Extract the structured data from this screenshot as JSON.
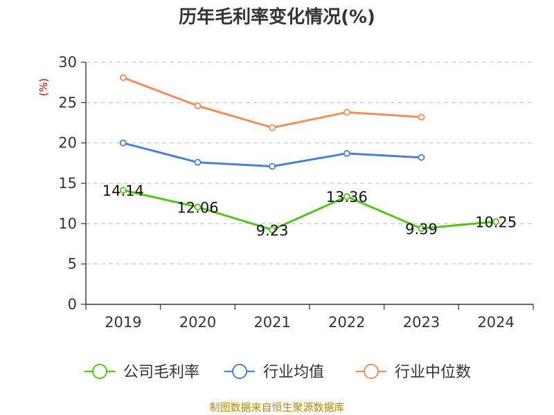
{
  "chart_data": {
    "type": "line",
    "title": "历年毛利率变化情况(%)",
    "ylabel": "(%)",
    "categories": [
      "2019",
      "2020",
      "2021",
      "2022",
      "2023",
      "2024"
    ],
    "ylim": [
      0,
      30
    ],
    "yticks": [
      "0",
      "5",
      "10",
      "15",
      "20",
      "25",
      "30"
    ],
    "grid": true,
    "legend_position": "bottom",
    "series": [
      {
        "name": "公司毛利率",
        "color": "#52c41a",
        "values": [
          14.14,
          12.06,
          9.23,
          13.36,
          9.39,
          10.25
        ],
        "labels": [
          "14.14",
          "12.06",
          "9.23",
          "13.36",
          "9.39",
          "10.25"
        ]
      },
      {
        "name": "行业均值",
        "color": "#4a7fd6",
        "values": [
          20.0,
          17.6,
          17.1,
          18.7,
          18.2,
          null
        ],
        "labels": []
      },
      {
        "name": "行业中位数",
        "color": "#f58d5b",
        "values": [
          28.1,
          24.6,
          21.9,
          23.8,
          23.2,
          null
        ],
        "labels": []
      }
    ]
  },
  "footer": {
    "source": "制图数据来自恒生聚源数据库"
  }
}
